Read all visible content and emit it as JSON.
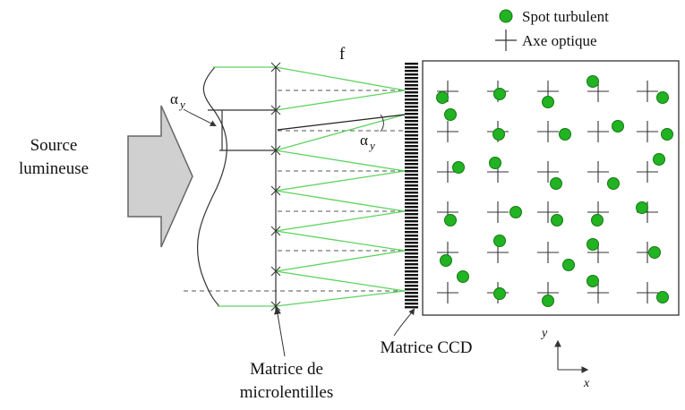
{
  "labels": {
    "source_line1": "Source",
    "source_line2": "lumineuse",
    "focal": "f",
    "alpha_left": "α",
    "alpha_left_sub": "y",
    "alpha_right": "α",
    "alpha_right_sub": "y",
    "microlens_line1": "Matrice de",
    "microlens_line2": "microlentilles",
    "ccd": "Matrice CCD",
    "axis_x": "x",
    "axis_y": "y"
  },
  "legend": {
    "spot": "Spot turbulent",
    "axis": "Axe optique"
  },
  "colors": {
    "ray": "#5fd35f",
    "spot": "#22b322",
    "spot_stroke": "#137a13",
    "arrow_fill": "#d0d0d0",
    "arrow_stroke": "#666666",
    "line": "#333333"
  },
  "grid": {
    "cols": 6,
    "rows": 6,
    "spots": [
      [
        -5,
        6,
        0,
        0,
        -5,
        3,
        -5,
        6,
        1,
        -6,
        4,
        3
      ],
      [
        3,
        -10,
        0,
        4,
        5,
        5,
        0,
        -4,
        5,
        4,
        0,
        0
      ],
      [
        2,
        -5,
        -5,
        -6,
        0,
        10,
        10,
        5,
        0,
        0,
        5,
        -11
      ],
      [
        0,
        0,
        0,
        0,
        0,
        0,
        0,
        0,
        0,
        0,
        0,
        0
      ]
    ]
  }
}
